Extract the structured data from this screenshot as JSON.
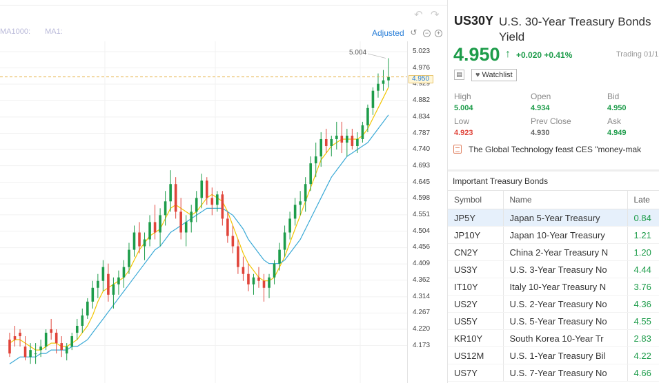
{
  "chart": {
    "ma_labels": [
      "MA1000:",
      "MA1:"
    ],
    "adjust_label": "Adjusted",
    "high_annotation": "5.004",
    "current_price_tag": "4.950",
    "y_ticks": [
      "5.023",
      "4.976",
      "4.929",
      "4.882",
      "4.834",
      "4.787",
      "4.740",
      "4.693",
      "4.645",
      "4.598",
      "4.551",
      "4.504",
      "4.456",
      "4.409",
      "4.362",
      "4.314",
      "4.267",
      "4.220",
      "4.173"
    ]
  },
  "chart_data": {
    "type": "candlestick",
    "y_axis_ticks": [
      5.023,
      4.976,
      4.929,
      4.882,
      4.834,
      4.787,
      4.74,
      4.693,
      4.645,
      4.598,
      4.551,
      4.504,
      4.456,
      4.409,
      4.362,
      4.314,
      4.267,
      4.22,
      4.173
    ],
    "current_value": 4.95,
    "high_marker": 5.004,
    "candles_ohlc": [
      [
        4.19,
        4.21,
        4.14,
        4.15
      ],
      [
        4.2,
        4.23,
        4.17,
        4.19
      ],
      [
        4.21,
        4.22,
        4.17,
        4.2
      ],
      [
        4.17,
        4.2,
        4.13,
        4.14
      ],
      [
        4.14,
        4.18,
        4.12,
        4.16
      ],
      [
        4.15,
        4.18,
        4.12,
        4.15
      ],
      [
        4.16,
        4.19,
        4.14,
        4.17
      ],
      [
        4.17,
        4.22,
        4.16,
        4.21
      ],
      [
        4.22,
        4.25,
        4.19,
        4.21
      ],
      [
        4.21,
        4.22,
        4.15,
        4.18
      ],
      [
        4.18,
        4.2,
        4.14,
        4.16
      ],
      [
        4.15,
        4.18,
        4.13,
        4.17
      ],
      [
        4.17,
        4.21,
        4.16,
        4.2
      ],
      [
        4.21,
        4.25,
        4.19,
        4.23
      ],
      [
        4.23,
        4.28,
        4.21,
        4.26
      ],
      [
        4.26,
        4.31,
        4.25,
        4.3
      ],
      [
        4.3,
        4.36,
        4.28,
        4.34
      ],
      [
        4.34,
        4.38,
        4.31,
        4.36
      ],
      [
        4.36,
        4.42,
        4.33,
        4.4
      ],
      [
        4.38,
        4.41,
        4.3,
        4.32
      ],
      [
        4.32,
        4.37,
        4.28,
        4.35
      ],
      [
        4.35,
        4.39,
        4.32,
        4.37
      ],
      [
        4.37,
        4.42,
        4.34,
        4.4
      ],
      [
        4.4,
        4.47,
        4.38,
        4.45
      ],
      [
        4.45,
        4.52,
        4.43,
        4.5
      ],
      [
        4.5,
        4.53,
        4.44,
        4.46
      ],
      [
        4.46,
        4.5,
        4.42,
        4.48
      ],
      [
        4.48,
        4.55,
        4.46,
        4.53
      ],
      [
        4.53,
        4.58,
        4.48,
        4.5
      ],
      [
        4.5,
        4.57,
        4.46,
        4.55
      ],
      [
        4.55,
        4.62,
        4.52,
        4.59
      ],
      [
        4.59,
        4.68,
        4.56,
        4.64
      ],
      [
        4.64,
        4.66,
        4.54,
        4.56
      ],
      [
        4.56,
        4.6,
        4.48,
        4.5
      ],
      [
        4.5,
        4.55,
        4.46,
        4.53
      ],
      [
        4.53,
        4.58,
        4.5,
        4.56
      ],
      [
        4.56,
        4.62,
        4.53,
        4.6
      ],
      [
        4.6,
        4.67,
        4.57,
        4.65
      ],
      [
        4.65,
        4.66,
        4.58,
        4.6
      ],
      [
        4.6,
        4.63,
        4.55,
        4.58
      ],
      [
        4.58,
        4.62,
        4.56,
        4.61
      ],
      [
        4.61,
        4.62,
        4.52,
        4.54
      ],
      [
        4.54,
        4.56,
        4.47,
        4.49
      ],
      [
        4.49,
        4.52,
        4.44,
        4.46
      ],
      [
        4.46,
        4.48,
        4.38,
        4.4
      ],
      [
        4.4,
        4.43,
        4.36,
        4.38
      ],
      [
        4.38,
        4.41,
        4.33,
        4.35
      ],
      [
        4.35,
        4.38,
        4.32,
        4.37
      ],
      [
        4.37,
        4.4,
        4.34,
        4.36
      ],
      [
        4.36,
        4.38,
        4.3,
        4.34
      ],
      [
        4.34,
        4.38,
        4.31,
        4.37
      ],
      [
        4.37,
        4.42,
        4.35,
        4.41
      ],
      [
        4.41,
        4.47,
        4.39,
        4.45
      ],
      [
        4.45,
        4.52,
        4.43,
        4.5
      ],
      [
        4.5,
        4.56,
        4.48,
        4.54
      ],
      [
        4.54,
        4.6,
        4.52,
        4.58
      ],
      [
        4.58,
        4.62,
        4.55,
        4.59
      ],
      [
        4.59,
        4.66,
        4.56,
        4.64
      ],
      [
        4.64,
        4.72,
        4.62,
        4.7
      ],
      [
        4.7,
        4.76,
        4.66,
        4.72
      ],
      [
        4.72,
        4.79,
        4.69,
        4.77
      ],
      [
        4.77,
        4.8,
        4.73,
        4.75
      ],
      [
        4.75,
        4.78,
        4.72,
        4.77
      ],
      [
        4.77,
        4.82,
        4.74,
        4.78
      ],
      [
        4.78,
        4.82,
        4.73,
        4.76
      ],
      [
        4.76,
        4.8,
        4.72,
        4.78
      ],
      [
        4.78,
        4.8,
        4.74,
        4.75
      ],
      [
        4.75,
        4.79,
        4.73,
        4.77
      ],
      [
        4.77,
        4.82,
        4.76,
        4.81
      ],
      [
        4.81,
        4.87,
        4.79,
        4.86
      ],
      [
        4.86,
        4.92,
        4.84,
        4.91
      ],
      [
        4.91,
        4.96,
        4.89,
        4.93
      ],
      [
        4.93,
        4.97,
        4.91,
        4.94
      ],
      [
        4.94,
        5.004,
        4.92,
        4.95
      ]
    ],
    "series": [
      {
        "color": "#f2c500",
        "values": [
          4.18,
          4.19,
          4.19,
          4.18,
          4.17,
          4.16,
          4.16,
          4.17,
          4.18,
          4.18,
          4.17,
          4.17,
          4.18,
          4.19,
          4.21,
          4.23,
          4.26,
          4.3,
          4.33,
          4.34,
          4.35,
          4.36,
          4.37,
          4.39,
          4.42,
          4.45,
          4.47,
          4.49,
          4.5,
          4.51,
          4.54,
          4.57,
          4.58,
          4.57,
          4.56,
          4.55,
          4.56,
          4.58,
          4.6,
          4.61,
          4.6,
          4.59,
          4.56,
          4.52,
          4.48,
          4.44,
          4.41,
          4.39,
          4.37,
          4.36,
          4.36,
          4.37,
          4.4,
          4.43,
          4.47,
          4.51,
          4.55,
          4.59,
          4.63,
          4.67,
          4.71,
          4.73,
          4.75,
          4.76,
          4.77,
          4.77,
          4.77,
          4.77,
          4.78,
          4.8,
          4.83,
          4.86,
          4.89,
          4.92
        ]
      },
      {
        "color": "#3aa9d6",
        "values": [
          4.12,
          4.13,
          4.14,
          4.14,
          4.14,
          4.14,
          4.15,
          4.15,
          4.16,
          4.16,
          4.16,
          4.16,
          4.17,
          4.17,
          4.18,
          4.19,
          4.21,
          4.23,
          4.25,
          4.27,
          4.29,
          4.31,
          4.33,
          4.35,
          4.37,
          4.39,
          4.41,
          4.43,
          4.45,
          4.46,
          4.48,
          4.5,
          4.51,
          4.52,
          4.53,
          4.54,
          4.55,
          4.56,
          4.57,
          4.57,
          4.57,
          4.57,
          4.56,
          4.55,
          4.53,
          4.51,
          4.48,
          4.46,
          4.44,
          4.42,
          4.41,
          4.41,
          4.41,
          4.42,
          4.44,
          4.46,
          4.48,
          4.51,
          4.54,
          4.57,
          4.6,
          4.63,
          4.66,
          4.68,
          4.7,
          4.72,
          4.73,
          4.74,
          4.75,
          4.76,
          4.78,
          4.8,
          4.82,
          4.84
        ]
      }
    ]
  },
  "quote": {
    "symbol": "US30Y",
    "name": "U.S. 30-Year Treasury Bonds Yield",
    "price": "4.950",
    "arrow": "↑",
    "change": "+0.020 +0.41%",
    "status": "Trading 01/1",
    "watchlist_label": "Watchlist",
    "stats": [
      {
        "label": "High",
        "value": "5.004",
        "tone": "green"
      },
      {
        "label": "Open",
        "value": "4.934",
        "tone": "green"
      },
      {
        "label": "Bid",
        "value": "4.950",
        "tone": "green"
      },
      {
        "label": "Low",
        "value": "4.923",
        "tone": "red"
      },
      {
        "label": "Prev Close",
        "value": "4.930",
        "tone": "gray"
      },
      {
        "label": "Ask",
        "value": "4.949",
        "tone": "green"
      }
    ],
    "news": "The Global Technology feast CES \"money-mak"
  },
  "bonds": {
    "title": "Important Treasury Bonds",
    "columns": [
      "Symbol",
      "Name",
      "Late"
    ],
    "rows": [
      {
        "symbol": "JP5Y",
        "name": "Japan 5-Year Treasury",
        "latest": "0.84"
      },
      {
        "symbol": "JP10Y",
        "name": "Japan 10-Year Treasury",
        "latest": "1.21"
      },
      {
        "symbol": "CN2Y",
        "name": "China 2-Year Treasury N",
        "latest": "1.20"
      },
      {
        "symbol": "US3Y",
        "name": "U.S. 3-Year Treasury No",
        "latest": "4.44"
      },
      {
        "symbol": "IT10Y",
        "name": "Italy 10-Year Treasury N",
        "latest": "3.76"
      },
      {
        "symbol": "US2Y",
        "name": "U.S. 2-Year Treasury No",
        "latest": "4.36"
      },
      {
        "symbol": "US5Y",
        "name": "U.S. 5-Year Treasury No",
        "latest": "4.55"
      },
      {
        "symbol": "KR10Y",
        "name": "South Korea 10-Year Tr",
        "latest": "2.83"
      },
      {
        "symbol": "US12M",
        "name": "U.S. 1-Year Treasury Bil",
        "latest": "4.22"
      },
      {
        "symbol": "US7Y",
        "name": "U.S. 7-Year Treasury No",
        "latest": "4.66"
      }
    ]
  },
  "colors": {
    "up": "#1d9c4a",
    "down": "#e0443a",
    "accent": "#2a7fd8"
  }
}
